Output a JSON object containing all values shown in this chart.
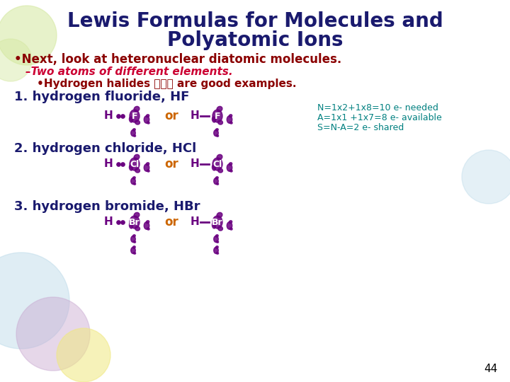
{
  "title_line1": "Lewis Formulas for Molecules and",
  "title_line2": "Polyatomic Ions",
  "title_color": "#1a1a6e",
  "bg_color": "#ffffff",
  "bullet1": "•Next, look at heteronuclear diatomic molecules.",
  "bullet1_color": "#8b0000",
  "sub_bullet1": "–Two atoms of different elements.",
  "sub_bullet1_color": "#cc0033",
  "sub_bullet2": "•Hydrogen halides 齵化氪 are good examples.",
  "sub_bullet2_color": "#8b0000",
  "item1": "1. hydrogen fluoride, HF",
  "item1_color": "#1a1a6e",
  "item2": "2. hydrogen chloride, HCl",
  "item2_color": "#1a1a6e",
  "item3": "3. hydrogen bromide, HBr",
  "item3_color": "#1a1a6e",
  "note_line1": "N=1x2+1x8=10 e- needed",
  "note_line2": "A=1x1 +1x7=8 e- available",
  "note_line3": "S=N-A=2 e- shared",
  "note_color": "#008080",
  "or_color": "#cc6600",
  "dot_color": "#6a0080",
  "page_num": "44",
  "page_color": "#000000",
  "balloon_green": "#d4e8a0",
  "balloon_blue": "#b8d8e8",
  "balloon_purple": "#c8a8d0",
  "balloon_yellow": "#f0e880",
  "balloon_pink": "#e8c0c0"
}
